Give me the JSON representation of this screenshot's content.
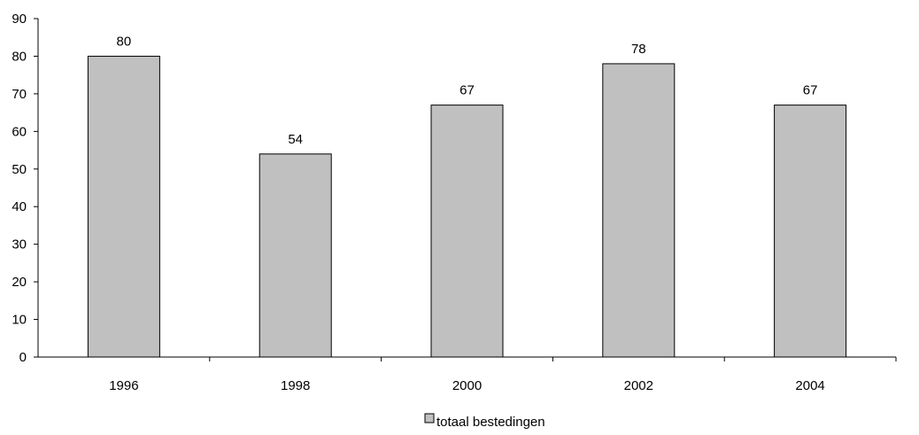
{
  "chart_data": {
    "type": "bar",
    "categories": [
      "1996",
      "1998",
      "2000",
      "2002",
      "2004"
    ],
    "series": [
      {
        "name": "totaal bestedingen",
        "values": [
          80,
          54,
          67,
          78,
          67
        ]
      }
    ],
    "data_labels": [
      "80",
      "54",
      "67",
      "78",
      "67"
    ],
    "y_ticks": [
      "0",
      "10",
      "20",
      "30",
      "40",
      "50",
      "60",
      "70",
      "80",
      "90"
    ],
    "ylim": [
      0,
      90
    ],
    "grid": false,
    "legend_position": "bottom-center",
    "colors": {
      "bar_fill": "#c0c0c0",
      "bar_stroke": "#000000",
      "axis": "#000000"
    }
  }
}
